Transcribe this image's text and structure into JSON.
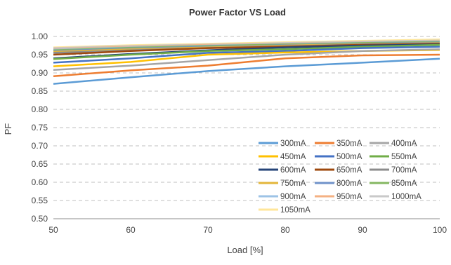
{
  "chart_data": {
    "type": "line",
    "title": "Power Factor VS  Load",
    "xlabel": "Load [%]",
    "ylabel": "PF",
    "xlim": [
      50,
      100
    ],
    "ylim": [
      0.5,
      1.0
    ],
    "x_ticks": [
      "50",
      "60",
      "70",
      "80",
      "90",
      "100"
    ],
    "y_ticks": [
      "0.50",
      "0.55",
      "0.60",
      "0.65",
      "0.70",
      "0.75",
      "0.80",
      "0.85",
      "0.90",
      "0.95",
      "1.00"
    ],
    "grid": "horizontal dashed",
    "legend_position": "bottom-right",
    "x": [
      50,
      60,
      70,
      80,
      90,
      100
    ],
    "series": [
      {
        "name": "300mA",
        "color": "#5b9bd5",
        "values": [
          0.87,
          0.888,
          0.905,
          0.918,
          0.928,
          0.939
        ]
      },
      {
        "name": "350mA",
        "color": "#ed7d31",
        "values": [
          0.891,
          0.907,
          0.92,
          0.94,
          0.948,
          0.95
        ]
      },
      {
        "name": "400mA",
        "color": "#a5a5a5",
        "values": [
          0.908,
          0.92,
          0.935,
          0.95,
          0.96,
          0.965
        ]
      },
      {
        "name": "450mA",
        "color": "#ffc000",
        "values": [
          0.918,
          0.93,
          0.95,
          0.956,
          0.96,
          0.963
        ]
      },
      {
        "name": "500mA",
        "color": "#4472c4",
        "values": [
          0.928,
          0.94,
          0.955,
          0.96,
          0.968,
          0.972
        ]
      },
      {
        "name": "550mA",
        "color": "#70ad47",
        "values": [
          0.938,
          0.95,
          0.96,
          0.965,
          0.972,
          0.977
        ]
      },
      {
        "name": "600mA",
        "color": "#264478",
        "values": [
          0.94,
          0.952,
          0.962,
          0.97,
          0.975,
          0.978
        ]
      },
      {
        "name": "650mA",
        "color": "#9e480e",
        "values": [
          0.95,
          0.96,
          0.968,
          0.972,
          0.977,
          0.98
        ]
      },
      {
        "name": "700mA",
        "color": "#8c8c8c",
        "values": [
          0.955,
          0.962,
          0.968,
          0.973,
          0.978,
          0.981
        ]
      },
      {
        "name": "750mA",
        "color": "#e3b63a",
        "values": [
          0.958,
          0.965,
          0.97,
          0.975,
          0.979,
          0.982
        ]
      },
      {
        "name": "800mA",
        "color": "#6f92c9",
        "values": [
          0.96,
          0.967,
          0.972,
          0.976,
          0.98,
          0.983
        ]
      },
      {
        "name": "850mA",
        "color": "#84b761",
        "values": [
          0.962,
          0.969,
          0.974,
          0.978,
          0.982,
          0.985
        ]
      },
      {
        "name": "900mA",
        "color": "#9dc3e6",
        "values": [
          0.964,
          0.97,
          0.975,
          0.979,
          0.983,
          0.986
        ]
      },
      {
        "name": "950mA",
        "color": "#f4b183",
        "values": [
          0.966,
          0.972,
          0.977,
          0.98,
          0.984,
          0.987
        ]
      },
      {
        "name": "1000mA",
        "color": "#c9c9c9",
        "values": [
          0.968,
          0.974,
          0.978,
          0.982,
          0.986,
          0.989
        ]
      },
      {
        "name": "1050mA",
        "color": "#ffe699",
        "values": [
          0.97,
          0.976,
          0.98,
          0.984,
          0.988,
          0.992
        ]
      }
    ]
  }
}
